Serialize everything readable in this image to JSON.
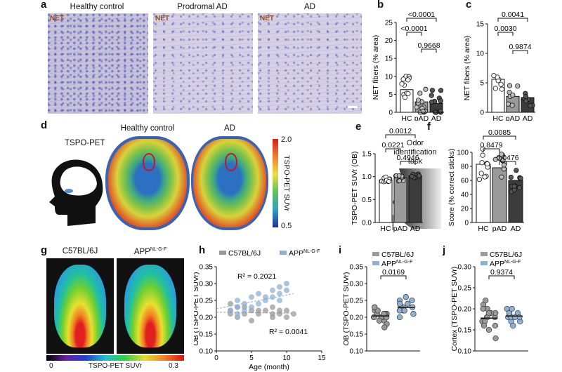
{
  "panel_letters": [
    "a",
    "b",
    "c",
    "d",
    "e",
    "f",
    "g",
    "h",
    "i",
    "j"
  ],
  "histology": {
    "titles": [
      "Healthy control",
      "Prodromal AD",
      "AD"
    ],
    "stain_label": "NET"
  },
  "scale_bar_color": "#ffffff",
  "pet_human": {
    "title_left": "TSPO-PET",
    "titles": [
      "Healthy control",
      "AD"
    ],
    "colorbar_label": "TSPO-PET SUVr",
    "colorbar_max": "2.0",
    "colorbar_min": "0.5"
  },
  "odor": {
    "label_line1": "Odor",
    "label_line2": "identification",
    "label_line3": "task"
  },
  "mouse_pet": {
    "titles": [
      "C57BL/6J",
      "APP"
    ],
    "app_superscript": "NL-G-F",
    "colorbar_label": "TSPO-PET SUVr",
    "colorbar_min": "0",
    "colorbar_max": "0.3"
  },
  "chart_data": [
    {
      "panel": "b",
      "type": "bar",
      "categories": [
        "HC",
        "pAD",
        "AD"
      ],
      "values": [
        6.3,
        2.9,
        2.5
      ],
      "ylabel": "NET fibers (% area)",
      "ylim": [
        0,
        25
      ],
      "yticks": [
        0,
        5,
        10,
        15,
        20,
        25
      ],
      "bar_colors": [
        "#ffffff",
        "#9a9a9a",
        "#3c3c3c"
      ],
      "annotations": [
        "<0.0001",
        "<0.0001",
        "0.9668"
      ]
    },
    {
      "panel": "c",
      "type": "bar",
      "categories": [
        "HC",
        "pAD",
        "AD"
      ],
      "values": [
        5.6,
        2.7,
        2.5
      ],
      "ylabel": "NET fibers (% area)",
      "ylim": [
        0,
        15
      ],
      "yticks": [
        0,
        5,
        10,
        15
      ],
      "bar_colors": [
        "#ffffff",
        "#9a9a9a",
        "#3c3c3c"
      ],
      "annotations": [
        "0.0041",
        "0.0030",
        "0.9874"
      ]
    },
    {
      "panel": "e",
      "type": "bar",
      "categories": [
        "HC",
        "pAD",
        "AD"
      ],
      "values": [
        0.93,
        0.97,
        1.02
      ],
      "ylabel": "TSPO-PET SUVr (OB)",
      "ylim": [
        0,
        1.5
      ],
      "yticks": [
        "0.0",
        "0.5",
        "1.0",
        "1.5"
      ],
      "bar_colors": [
        "#ffffff",
        "#9a9a9a",
        "#3c3c3c"
      ],
      "annotations": [
        "0.0012",
        "0.0221",
        "0.4946"
      ]
    },
    {
      "panel": "f",
      "type": "bar",
      "categories": [
        "HC",
        "pAD",
        "AD"
      ],
      "values": [
        83,
        78,
        60
      ],
      "ylabel": "Score (% correct sticks)",
      "ylim": [
        0,
        100
      ],
      "yticks": [
        0,
        20,
        40,
        60,
        80,
        100
      ],
      "bar_colors": [
        "#ffffff",
        "#9a9a9a",
        "#3c3c3c"
      ],
      "annotations": [
        "0.0085",
        "0.8479",
        "0.0476"
      ]
    },
    {
      "panel": "h",
      "type": "scatter",
      "series": [
        {
          "name": "C57BL/6J",
          "color": "#9a9a9a",
          "x": [
            2,
            2,
            3,
            3,
            4,
            5,
            5,
            6,
            7,
            8,
            8,
            9,
            9,
            10,
            11,
            2,
            4,
            6,
            8,
            10
          ],
          "y": [
            0.21,
            0.22,
            0.2,
            0.23,
            0.21,
            0.22,
            0.19,
            0.21,
            0.22,
            0.2,
            0.23,
            0.21,
            0.22,
            0.2,
            0.21,
            0.24,
            0.23,
            0.22,
            0.21,
            0.22
          ]
        },
        {
          "name": "APP",
          "color": "#8fb2d4",
          "x": [
            2,
            3,
            3,
            4,
            4,
            5,
            6,
            6,
            7,
            8,
            8,
            9,
            9,
            10,
            10,
            3,
            5,
            7,
            9
          ],
          "y": [
            0.22,
            0.23,
            0.25,
            0.24,
            0.22,
            0.26,
            0.24,
            0.27,
            0.25,
            0.26,
            0.28,
            0.27,
            0.25,
            0.28,
            0.3,
            0.21,
            0.23,
            0.26,
            0.29
          ]
        }
      ],
      "legend_superscript": "NL-G-F",
      "r2_app": "R² = 0.2021",
      "r2_wt": "R² = 0.0041",
      "xlabel": "Age (month)",
      "ylabel": "OB (TSPO-PET SUVr)",
      "xlim": [
        0,
        15
      ],
      "xticks": [
        0,
        5,
        10,
        15
      ],
      "ylim": [
        0.1,
        0.35
      ],
      "yticks": [
        "0.10",
        "0.15",
        "0.20",
        "0.25",
        "0.30",
        "0.35"
      ]
    },
    {
      "panel": "i",
      "type": "scatter",
      "series": [
        {
          "name": "C57BL/6J",
          "color": "#9a9a9a",
          "values": [
            0.19,
            0.2,
            0.21,
            0.2,
            0.22,
            0.18,
            0.21,
            0.2,
            0.19,
            0.22,
            0.21,
            0.2,
            0.23,
            0.17,
            0.21,
            0.2
          ]
        },
        {
          "name": "APP",
          "color": "#8fb2d4",
          "values": [
            0.22,
            0.23,
            0.24,
            0.21,
            0.25,
            0.23,
            0.22,
            0.26,
            0.24,
            0.2,
            0.23,
            0.25,
            0.22
          ]
        }
      ],
      "means": [
        0.204,
        0.229
      ],
      "legend_superscript": "NL-G-F",
      "annotations": [
        "0.0169"
      ],
      "ylabel": "OB (TSPO-PET SUVr)",
      "ylim": [
        0.1,
        0.35
      ],
      "yticks": [
        "0.10",
        "0.15",
        "0.20",
        "0.25",
        "0.30",
        "0.35"
      ]
    },
    {
      "panel": "j",
      "type": "scatter",
      "series": [
        {
          "name": "C57BL/6J",
          "color": "#9a9a9a",
          "values": [
            0.18,
            0.19,
            0.17,
            0.2,
            0.16,
            0.21,
            0.18,
            0.15,
            0.19,
            0.17,
            0.2,
            0.13,
            0.18,
            0.16,
            0.19,
            0.22
          ]
        },
        {
          "name": "APP",
          "color": "#8fb2d4",
          "values": [
            0.18,
            0.19,
            0.17,
            0.18,
            0.2,
            0.17,
            0.19,
            0.18,
            0.16,
            0.19,
            0.18,
            0.2
          ]
        }
      ],
      "means": [
        0.178,
        0.183
      ],
      "legend_superscript": "NL-G-F",
      "annotations": [
        "0.9374"
      ],
      "ylabel": "Cortex (TSPO-PET SUVr)",
      "ylim": [
        0.1,
        0.3
      ],
      "yticks": [
        "0.10",
        "0.15",
        "0.20",
        "0.25",
        "0.30"
      ]
    }
  ]
}
